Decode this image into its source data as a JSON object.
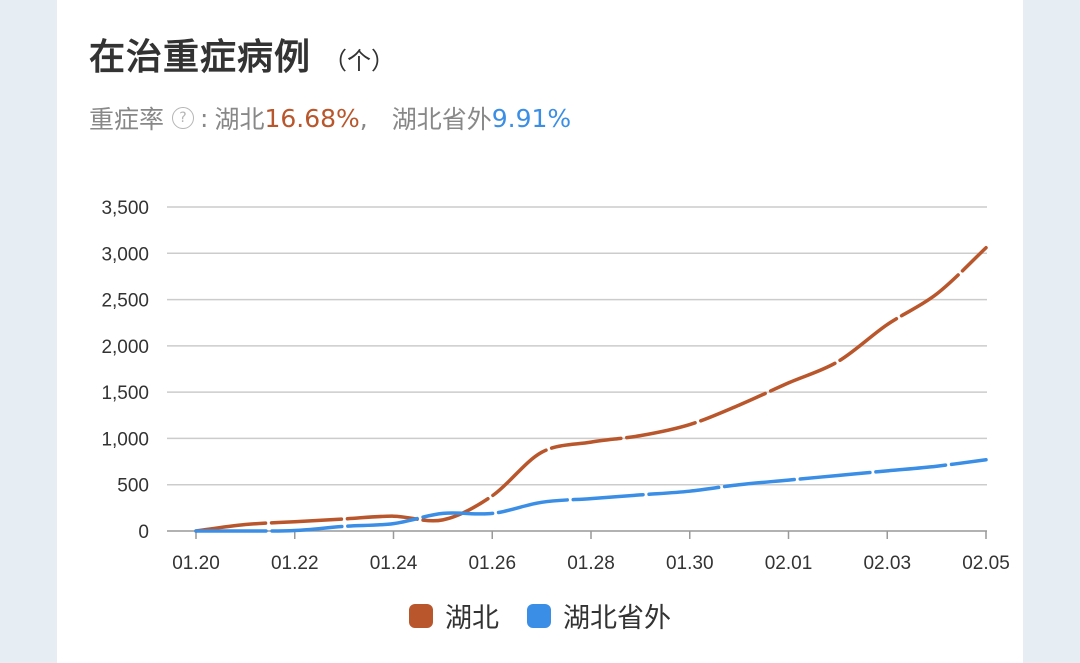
{
  "header": {
    "title": "在治重症病例",
    "unit": "（个）",
    "rate_label": "重症率",
    "rate_sep": ":",
    "hubei_label": "湖北",
    "hubei_rate": "16.68%",
    "rate_comma": ",",
    "outside_label": "湖北省外",
    "outside_rate": "9.91%",
    "help_glyph": "?"
  },
  "colors": {
    "hubei": "#b9562b",
    "outside": "#3a8ee6",
    "grid": "#cccccc"
  },
  "chart_data": {
    "type": "line",
    "title": "在治重症病例",
    "x": [
      "01.20",
      "01.21",
      "01.22",
      "01.23",
      "01.24",
      "01.25",
      "01.26",
      "01.27",
      "01.28",
      "01.29",
      "01.30",
      "01.31",
      "02.01",
      "02.02",
      "02.03",
      "02.04",
      "02.05"
    ],
    "x_tick_labels": [
      "01.20",
      "01.22",
      "01.24",
      "01.26",
      "01.28",
      "01.30",
      "02.01",
      "02.03",
      "02.05"
    ],
    "y_tick_labels": [
      "0",
      "500",
      "1,000",
      "1,500",
      "2,000",
      "2,500",
      "3,000",
      "3,500"
    ],
    "ylim": [
      0,
      3500
    ],
    "grid": true,
    "legend_position": "bottom",
    "series": [
      {
        "name": "湖北",
        "color": "#b9562b",
        "values": [
          0,
          70,
          100,
          130,
          160,
          120,
          380,
          850,
          960,
          1030,
          1150,
          1360,
          1600,
          1830,
          2230,
          2560,
          3060
        ]
      },
      {
        "name": "湖北省外",
        "color": "#3a8ee6",
        "values": [
          0,
          0,
          5,
          50,
          80,
          190,
          190,
          310,
          350,
          390,
          430,
          500,
          550,
          600,
          650,
          700,
          770
        ]
      }
    ]
  }
}
